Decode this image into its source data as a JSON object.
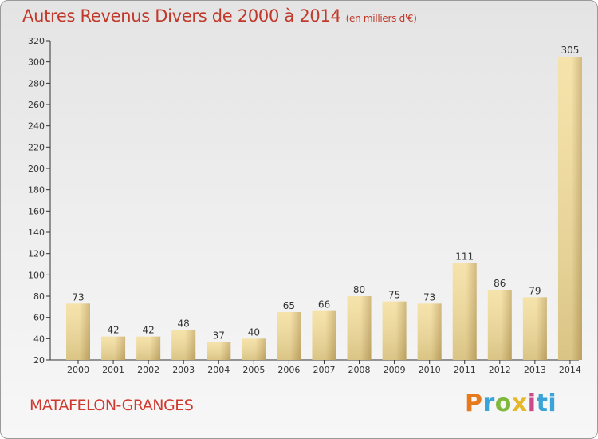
{
  "chart_data": {
    "type": "bar",
    "title": "Autres Revenus Divers de 2000 à 2014",
    "unit_note": "(en milliers d'€)",
    "categories": [
      "2000",
      "2001",
      "2002",
      "2003",
      "2004",
      "2005",
      "2006",
      "2007",
      "2008",
      "2009",
      "2010",
      "2011",
      "2012",
      "2013",
      "2014"
    ],
    "values": [
      73,
      42,
      42,
      48,
      37,
      40,
      65,
      66,
      80,
      75,
      73,
      111,
      86,
      79,
      305
    ],
    "ylim": [
      20,
      320
    ],
    "yticks": [
      20,
      40,
      60,
      80,
      100,
      120,
      140,
      160,
      180,
      200,
      220,
      240,
      260,
      280,
      300,
      320
    ],
    "grid": false,
    "colors": {
      "bar_light": "#f4de9c",
      "bar_dark": "#c9ad69",
      "axis": "#333333",
      "text": "#333333"
    }
  },
  "commune": "MATAFELON-GRANGES",
  "logo": {
    "letters": [
      "P",
      "r",
      "o",
      "x",
      "i",
      "ti"
    ]
  }
}
